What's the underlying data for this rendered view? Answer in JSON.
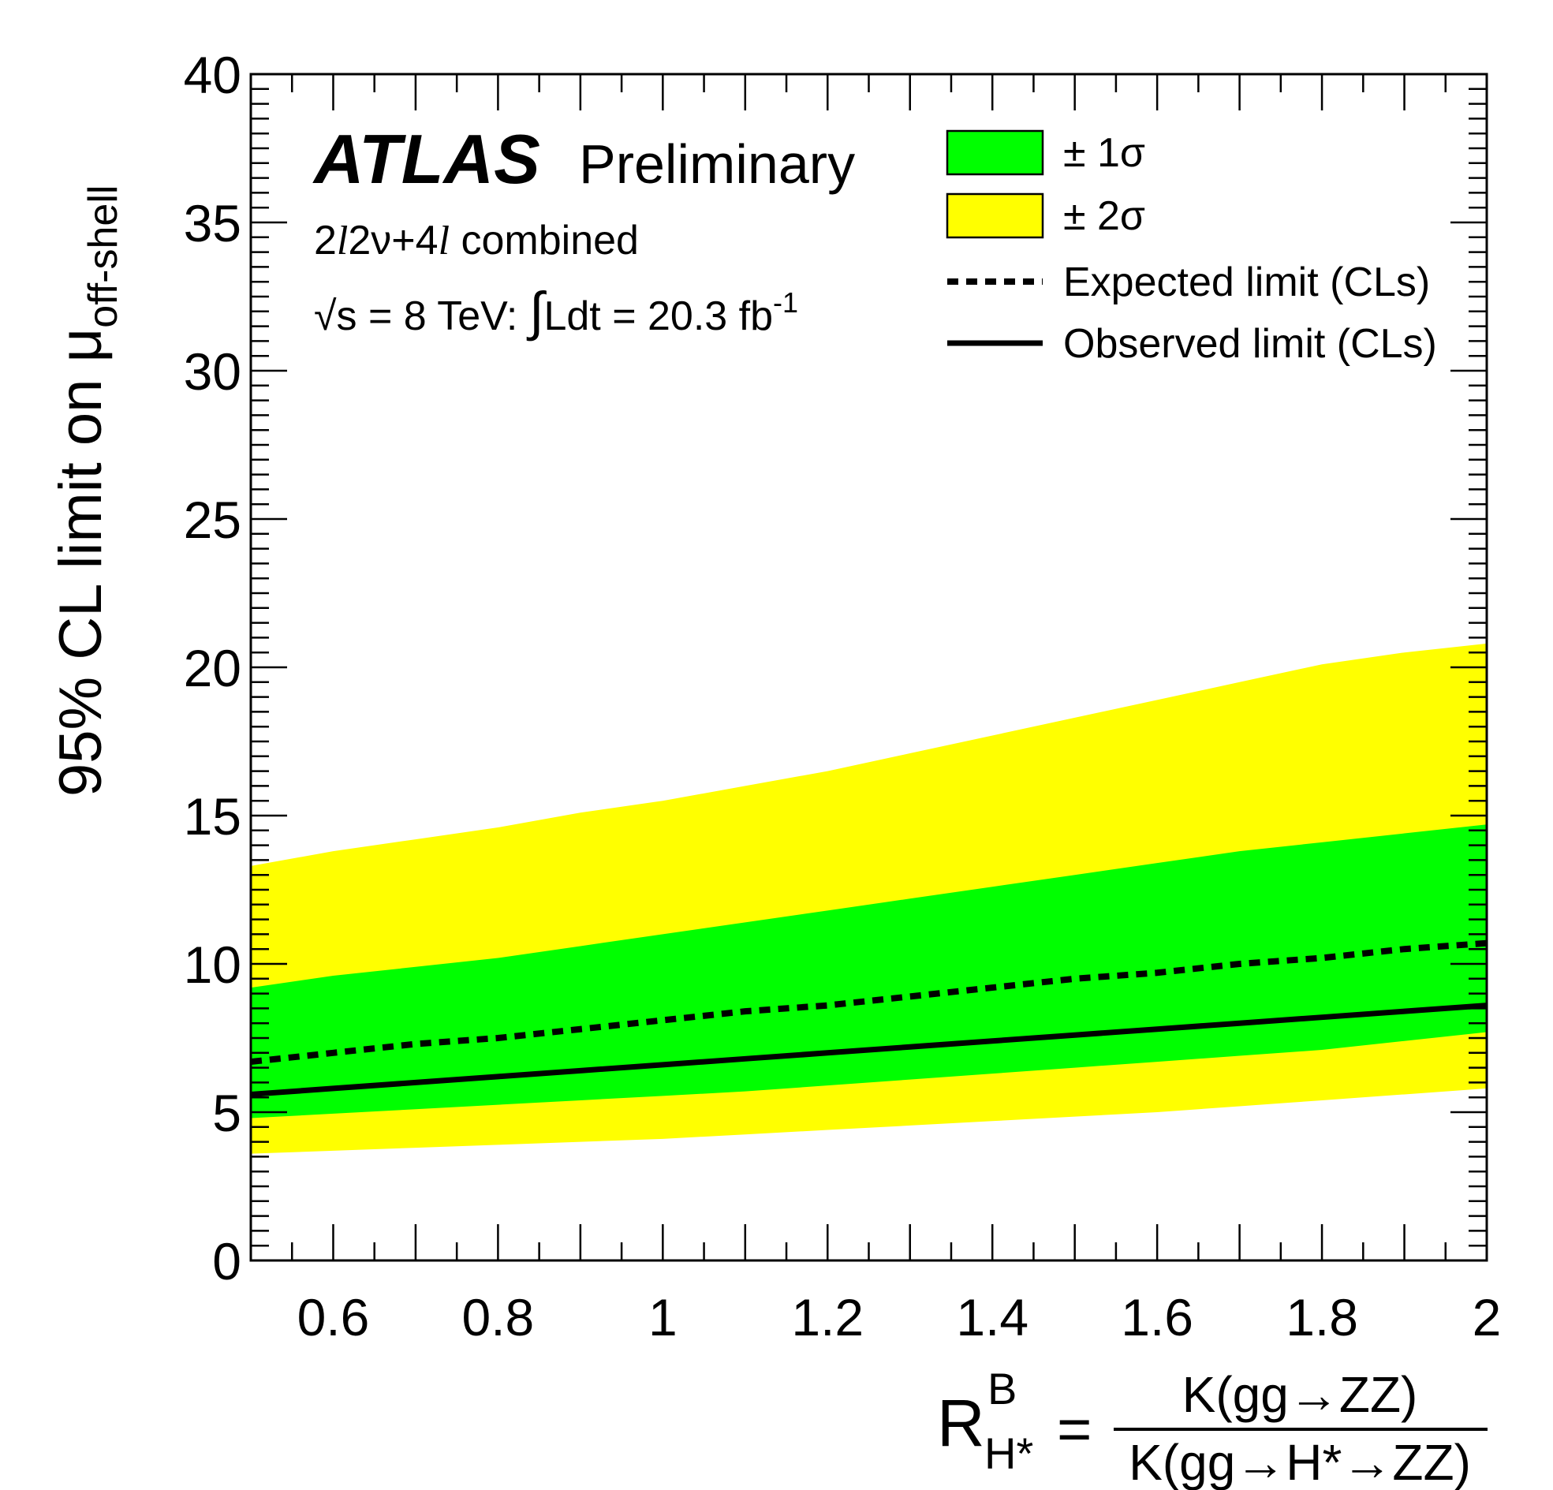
{
  "chart_data": {
    "type": "area",
    "x": [
      0.5,
      0.6,
      0.7,
      0.8,
      0.9,
      1.0,
      1.1,
      1.2,
      1.3,
      1.4,
      1.5,
      1.6,
      1.7,
      1.8,
      1.9,
      2.0
    ],
    "series": [
      {
        "name": "± 2σ",
        "color": "#ffff00",
        "lower": [
          3.6,
          3.7,
          3.8,
          3.9,
          4.0,
          4.1,
          4.25,
          4.4,
          4.55,
          4.7,
          4.85,
          5.0,
          5.2,
          5.4,
          5.6,
          5.8
        ],
        "upper": [
          13.3,
          13.8,
          14.2,
          14.6,
          15.1,
          15.5,
          16.0,
          16.5,
          17.1,
          17.7,
          18.3,
          18.9,
          19.5,
          20.1,
          20.5,
          20.8
        ]
      },
      {
        "name": "± 1σ",
        "color": "#00ff00",
        "lower": [
          4.8,
          4.95,
          5.1,
          5.25,
          5.4,
          5.55,
          5.7,
          5.9,
          6.1,
          6.3,
          6.5,
          6.7,
          6.9,
          7.1,
          7.4,
          7.7
        ],
        "upper": [
          9.2,
          9.6,
          9.9,
          10.2,
          10.6,
          11.0,
          11.4,
          11.8,
          12.2,
          12.6,
          13.0,
          13.4,
          13.8,
          14.1,
          14.4,
          14.7
        ]
      },
      {
        "name": "Expected limit (CLs)",
        "style": "dashed",
        "values": [
          6.7,
          7.0,
          7.3,
          7.5,
          7.8,
          8.1,
          8.4,
          8.6,
          8.9,
          9.2,
          9.5,
          9.7,
          10.0,
          10.2,
          10.5,
          10.7
        ]
      },
      {
        "name": "Observed limit (CLs)",
        "style": "solid",
        "values": [
          5.6,
          5.8,
          6.0,
          6.2,
          6.4,
          6.6,
          6.8,
          7.0,
          7.2,
          7.4,
          7.6,
          7.8,
          8.0,
          8.2,
          8.4,
          8.6
        ]
      }
    ],
    "xlim": [
      0.5,
      2.0
    ],
    "ylim": [
      0,
      40
    ],
    "x_ticks": [
      "0.6",
      "0.8",
      "1",
      "1.2",
      "1.4",
      "1.6",
      "1.8",
      "2"
    ],
    "y_ticks": [
      "0",
      "5",
      "10",
      "15",
      "20",
      "25",
      "30",
      "35",
      "40"
    ],
    "ylabel": {
      "main": "95% CL limit on μ",
      "sub": "off-shell"
    },
    "xlabel": {
      "lhs_base": "R",
      "lhs_sup": "B",
      "lhs_sub": "H*",
      "equals": "=",
      "numerator": "K(gg→ZZ)",
      "denominator": "K(gg→H*→ZZ)"
    },
    "annotations": {
      "experiment": "ATLAS",
      "status": "Preliminary",
      "channel_a": "2",
      "channel_l1": "l",
      "channel_b": "2ν+4",
      "channel_l2": "l",
      "channel_c": " combined",
      "energy_sqrt": "√",
      "energy": "s = 8 TeV: ",
      "integral": "∫",
      "lumi": "Ldt = 20.3 fb",
      "lumi_exp": "-1"
    },
    "legend": {
      "position": "top-right",
      "entries": [
        {
          "label": "± 1σ",
          "color": "#00ff00",
          "kind": "box"
        },
        {
          "label": "± 2σ",
          "color": "#ffff00",
          "kind": "box"
        },
        {
          "label": "Expected limit (CLs)",
          "kind": "dashed"
        },
        {
          "label": "Observed limit (CLs)",
          "kind": "solid"
        }
      ]
    },
    "grid": false
  }
}
